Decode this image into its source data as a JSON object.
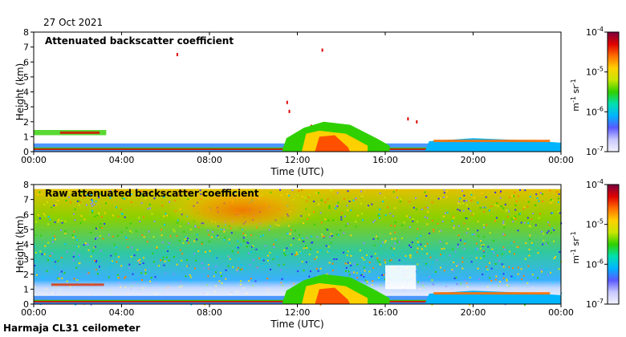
{
  "date": "27 Oct 2021",
  "footer": "Harmaja CL31 ceilometer",
  "colormap": {
    "stops": [
      "#f2f2ff",
      "#c8c8ff",
      "#5a5aff",
      "#00b4ff",
      "#00e0b0",
      "#30d000",
      "#c8e600",
      "#ffd000",
      "#ff7000",
      "#e00000",
      "#7a0040"
    ]
  },
  "chart_data": [
    {
      "type": "heatmap",
      "title": "Attenuated backscatter coefficient",
      "xlabel": "Time (UTC)",
      "ylabel": "Height (km)",
      "xticks": [
        "00:00",
        "04:00",
        "08:00",
        "12:00",
        "16:00",
        "20:00",
        "00:00"
      ],
      "yticks": [
        "0",
        "1",
        "2",
        "3",
        "4",
        "5",
        "6",
        "7",
        "8"
      ],
      "xlim_hours": [
        0,
        24
      ],
      "ylim_km": [
        0,
        8
      ],
      "colorbar": {
        "label": "m-1 sr-1",
        "scale": "log",
        "range": [
          1e-07,
          0.0001
        ],
        "tick_exponents": [
          "-4",
          "-5",
          "-6",
          "-7"
        ]
      }
    },
    {
      "type": "heatmap",
      "title": "Raw attenuated backscatter coefficient",
      "xlabel": "Time (UTC)",
      "ylabel": "Height (km)",
      "xticks": [
        "00:00",
        "04:00",
        "08:00",
        "12:00",
        "16:00",
        "20:00",
        "00:00"
      ],
      "yticks": [
        "0",
        "1",
        "2",
        "3",
        "4",
        "5",
        "6",
        "7",
        "8"
      ],
      "xlim_hours": [
        0,
        24
      ],
      "ylim_km": [
        0,
        8
      ],
      "colorbar": {
        "label": "m-1 sr-1",
        "scale": "log",
        "range": [
          1e-07,
          0.0001
        ],
        "tick_exponents": [
          "-4",
          "-5",
          "-6",
          "-7"
        ]
      }
    }
  ]
}
